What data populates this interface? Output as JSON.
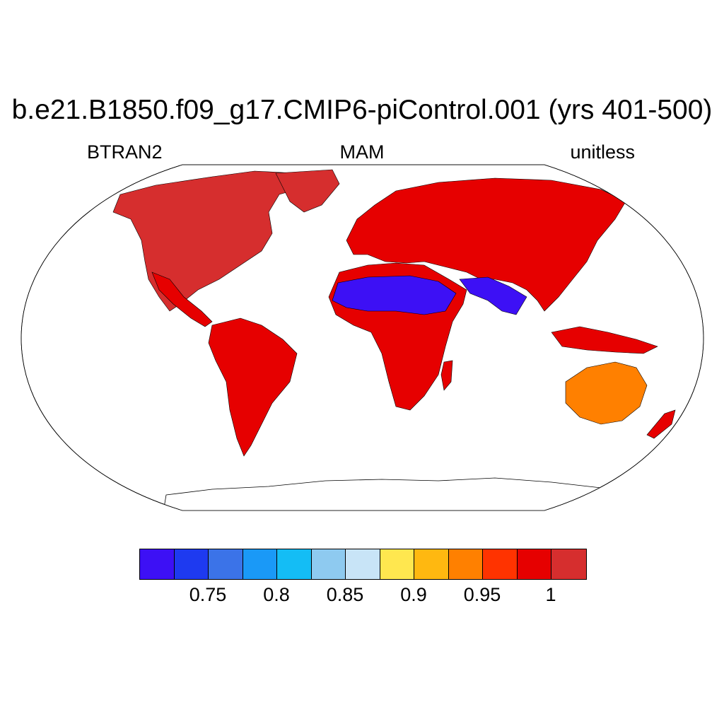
{
  "title": "b.e21.B1850.f09_g17.CMIP6-piControl.001 (yrs 401-500)",
  "subtitle_left": "BTRAN2",
  "subtitle_center": "MAM",
  "subtitle_right": "unitless",
  "projection": "Robinson",
  "colorbar": {
    "colors": [
      "#3d10f5",
      "#1e3af0",
      "#3b73e8",
      "#1a99f7",
      "#14bdf5",
      "#8ecaf0",
      "#c8e4f7",
      "#ffe74f",
      "#ffb810",
      "#ff8000",
      "#ff3300",
      "#e60000",
      "#d62e2e"
    ],
    "tick_labels": [
      "0.75",
      "0.8",
      "0.85",
      "0.9",
      "0.95",
      "1"
    ]
  },
  "land_colors": {
    "wet": "#e60000",
    "wettest": "#d62e2e",
    "dry": "#3d10f5",
    "moderate": "#ff8000",
    "transition": "#c8e4f7"
  }
}
